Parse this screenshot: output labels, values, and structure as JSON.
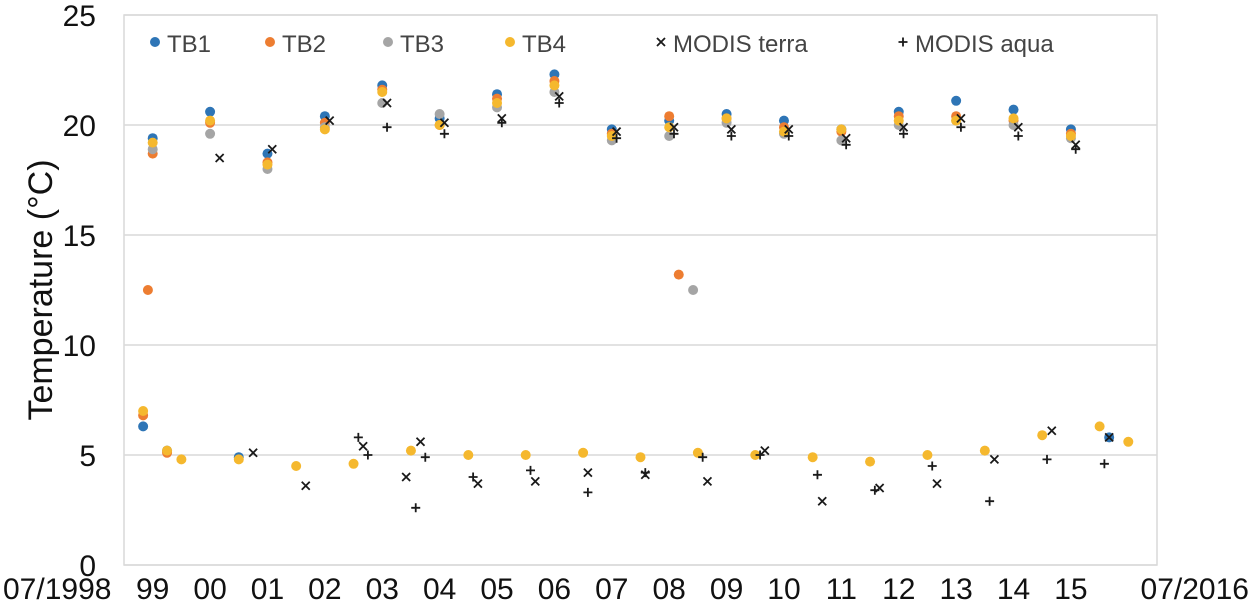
{
  "chart_data": {
    "type": "scatter",
    "ylabel": "Temperature (°C)",
    "xlabel": "",
    "ylim": [
      0,
      25
    ],
    "xlim": [
      "1998-07",
      "2016-07"
    ],
    "yticks": [
      "0",
      "5",
      "10",
      "15",
      "20",
      "25"
    ],
    "x_ticks": [
      {
        "date": "1998-07",
        "label": "07/1998"
      },
      {
        "date": "1999-01",
        "label": "99"
      },
      {
        "date": "2000-01",
        "label": "00"
      },
      {
        "date": "2001-01",
        "label": "01"
      },
      {
        "date": "2002-01",
        "label": "02"
      },
      {
        "date": "2003-01",
        "label": "03"
      },
      {
        "date": "2004-01",
        "label": "04"
      },
      {
        "date": "2005-01",
        "label": "05"
      },
      {
        "date": "2006-01",
        "label": "06"
      },
      {
        "date": "2007-01",
        "label": "07"
      },
      {
        "date": "2008-01",
        "label": "08"
      },
      {
        "date": "2009-01",
        "label": "09"
      },
      {
        "date": "2010-01",
        "label": "10"
      },
      {
        "date": "2011-01",
        "label": "11"
      },
      {
        "date": "2012-01",
        "label": "12"
      },
      {
        "date": "2013-01",
        "label": "13"
      },
      {
        "date": "2014-01",
        "label": "14"
      },
      {
        "date": "2015-01",
        "label": "15"
      },
      {
        "date": "2016-07",
        "label": "07/2016"
      }
    ],
    "grid": "horizontal",
    "legend_position": "top",
    "series": [
      {
        "name": "TB1",
        "marker": "dot",
        "color": "#2e75b6",
        "x": [
          "1998-11",
          "1999-01",
          "1999-04",
          "2000-01",
          "2000-07",
          "2001-01",
          "2002-01",
          "2003-01",
          "2004-01",
          "2005-01",
          "2006-01",
          "2007-01",
          "2008-01",
          "2009-01",
          "2010-01",
          "2011-01",
          "2012-01",
          "2013-01",
          "2014-01",
          "2015-01",
          "2015-09"
        ],
        "y": [
          6.3,
          19.4,
          5.2,
          20.6,
          4.9,
          18.7,
          20.4,
          21.8,
          20.3,
          21.4,
          22.3,
          19.8,
          20.2,
          20.5,
          20.2,
          19.8,
          20.6,
          21.1,
          20.7,
          19.8,
          5.8
        ]
      },
      {
        "name": "TB2",
        "marker": "dot",
        "color": "#ed7d31",
        "x": [
          "1998-11",
          "1998-12",
          "1999-01",
          "1999-04",
          "2000-01",
          "2001-01",
          "2002-01",
          "2003-01",
          "2004-01",
          "2005-01",
          "2006-01",
          "2007-01",
          "2008-01",
          "2008-03",
          "2009-01",
          "2010-01",
          "2011-01",
          "2012-01",
          "2013-01",
          "2014-01",
          "2015-01"
        ],
        "y": [
          6.8,
          12.5,
          18.7,
          5.1,
          20.1,
          18.3,
          20.1,
          21.6,
          20.0,
          21.2,
          22.0,
          19.6,
          20.4,
          13.2,
          20.3,
          19.9,
          19.7,
          20.4,
          20.4,
          20.2,
          19.6
        ]
      },
      {
        "name": "TB3",
        "marker": "dot",
        "color": "#a5a5a5",
        "x": [
          "1999-01",
          "2000-01",
          "2001-01",
          "2002-01",
          "2003-01",
          "2004-01",
          "2005-01",
          "2006-01",
          "2007-01",
          "2008-01",
          "2008-06",
          "2009-01",
          "2010-01",
          "2011-01",
          "2012-01",
          "2013-01",
          "2014-01",
          "2015-01"
        ],
        "y": [
          18.9,
          19.6,
          18.0,
          19.9,
          21.0,
          20.5,
          20.8,
          21.5,
          19.3,
          19.5,
          12.5,
          20.1,
          19.6,
          19.3,
          20.0,
          20.2,
          20.0,
          19.4
        ]
      },
      {
        "name": "TB4",
        "marker": "dot",
        "color": "#f5b82e",
        "x": [
          "1998-11",
          "1999-01",
          "1999-04",
          "1999-07",
          "2000-01",
          "2000-07",
          "2001-01",
          "2001-07",
          "2002-01",
          "2002-07",
          "2003-01",
          "2003-07",
          "2004-01",
          "2004-07",
          "2005-01",
          "2005-07",
          "2006-01",
          "2006-07",
          "2007-01",
          "2007-07",
          "2008-01",
          "2008-07",
          "2009-01",
          "2009-07",
          "2010-01",
          "2010-07",
          "2011-01",
          "2011-07",
          "2012-01",
          "2012-07",
          "2013-01",
          "2013-07",
          "2014-01",
          "2014-07",
          "2015-01",
          "2015-07",
          "2016-01"
        ],
        "y": [
          7.0,
          19.2,
          5.2,
          4.8,
          20.2,
          4.8,
          18.2,
          4.5,
          19.8,
          4.6,
          21.5,
          5.2,
          20.0,
          5.0,
          21.0,
          5.0,
          21.8,
          5.1,
          19.5,
          4.9,
          19.9,
          5.1,
          20.3,
          5.0,
          19.7,
          4.9,
          19.8,
          4.7,
          20.2,
          5.0,
          20.2,
          5.2,
          20.3,
          5.9,
          19.5,
          6.3,
          5.6
        ]
      },
      {
        "name": "MODIS terra",
        "marker": "x",
        "color": "#1a1a1a",
        "x": [
          "2000-03",
          "2000-10",
          "2001-02",
          "2001-09",
          "2002-02",
          "2002-09",
          "2003-02",
          "2003-06",
          "2003-09",
          "2004-02",
          "2004-09",
          "2005-02",
          "2005-09",
          "2006-02",
          "2006-08",
          "2007-02",
          "2007-08",
          "2008-02",
          "2008-09",
          "2009-02",
          "2009-09",
          "2010-02",
          "2010-09",
          "2011-02",
          "2011-09",
          "2012-02",
          "2012-09",
          "2013-02",
          "2013-09",
          "2014-02",
          "2014-09",
          "2015-02",
          "2015-09"
        ],
        "y": [
          18.5,
          5.1,
          18.9,
          3.6,
          20.2,
          5.4,
          21.0,
          4.0,
          5.6,
          20.1,
          3.7,
          20.3,
          3.8,
          21.3,
          4.2,
          19.7,
          4.1,
          19.9,
          3.8,
          19.8,
          5.2,
          19.8,
          2.9,
          19.4,
          3.5,
          19.9,
          3.7,
          20.3,
          4.8,
          19.9,
          6.1,
          19.1,
          5.8
        ]
      },
      {
        "name": "MODIS aqua",
        "marker": "+",
        "color": "#1a1a1a",
        "x": [
          "2002-08",
          "2002-10",
          "2003-02",
          "2003-08",
          "2003-10",
          "2004-02",
          "2004-08",
          "2005-02",
          "2005-08",
          "2006-02",
          "2006-08",
          "2007-02",
          "2007-08",
          "2008-02",
          "2008-08",
          "2009-02",
          "2009-08",
          "2010-02",
          "2010-08",
          "2011-02",
          "2011-08",
          "2012-02",
          "2012-08",
          "2013-02",
          "2013-08",
          "2014-02",
          "2014-08",
          "2015-02",
          "2015-08"
        ],
        "y": [
          5.8,
          5.0,
          19.9,
          2.6,
          4.9,
          19.6,
          4.0,
          20.1,
          4.3,
          21.0,
          3.3,
          19.4,
          4.2,
          19.6,
          4.9,
          19.5,
          5.0,
          19.5,
          4.1,
          19.1,
          3.4,
          19.6,
          4.5,
          19.9,
          2.9,
          19.5,
          4.8,
          18.9,
          4.6
        ]
      }
    ]
  }
}
